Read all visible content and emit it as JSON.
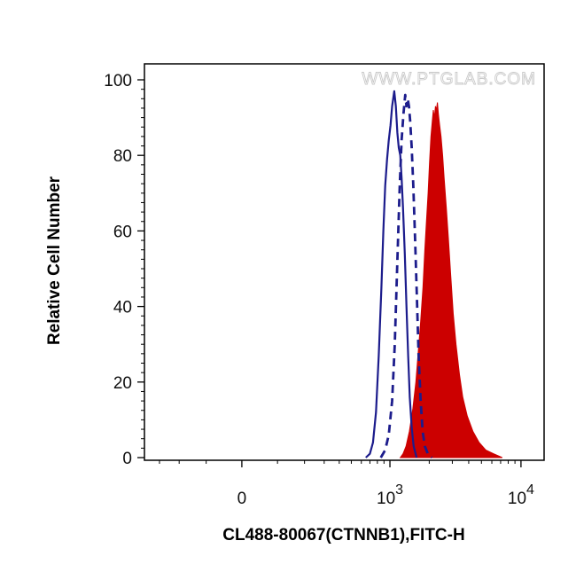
{
  "watermark": "WWW.PTGLAB.COM",
  "chart_data": {
    "type": "area",
    "title": "",
    "xlabel": "CL488-80067(CTNNB1),FITC-H",
    "ylabel": "Relative Cell Number",
    "x_scale": "biexponential",
    "xlim": [
      -400,
      15000
    ],
    "ylim": [
      0,
      100
    ],
    "x_ticks": [
      {
        "value": 0,
        "label": "0"
      },
      {
        "value": 1000,
        "label": "10",
        "exponent": "3"
      },
      {
        "value": 10000,
        "label": "10",
        "exponent": "4"
      }
    ],
    "y_ticks": [
      0,
      20,
      40,
      60,
      80,
      100
    ],
    "grid": false,
    "legend": "none",
    "series": [
      {
        "style": "solid-line",
        "color": "#1c1c8c",
        "points": [
          [
            650,
            0
          ],
          [
            700,
            1
          ],
          [
            740,
            4
          ],
          [
            780,
            12
          ],
          [
            820,
            27
          ],
          [
            860,
            45
          ],
          [
            890,
            60
          ],
          [
            920,
            72
          ],
          [
            950,
            79
          ],
          [
            980,
            84
          ],
          [
            1010,
            88
          ],
          [
            1040,
            93
          ],
          [
            1080,
            97
          ],
          [
            1110,
            93
          ],
          [
            1140,
            86
          ],
          [
            1170,
            82
          ],
          [
            1200,
            80
          ],
          [
            1230,
            74
          ],
          [
            1260,
            66
          ],
          [
            1300,
            54
          ],
          [
            1340,
            40
          ],
          [
            1380,
            27
          ],
          [
            1420,
            16
          ],
          [
            1470,
            8
          ],
          [
            1520,
            3
          ],
          [
            1600,
            0
          ]
        ]
      },
      {
        "style": "dashed-line",
        "color": "#1c1c8c",
        "points": [
          [
            850,
            0
          ],
          [
            920,
            2
          ],
          [
            980,
            6
          ],
          [
            1040,
            15
          ],
          [
            1090,
            30
          ],
          [
            1140,
            52
          ],
          [
            1190,
            72
          ],
          [
            1230,
            84
          ],
          [
            1270,
            91
          ],
          [
            1310,
            96
          ],
          [
            1340,
            93
          ],
          [
            1370,
            95
          ],
          [
            1400,
            93
          ],
          [
            1430,
            89
          ],
          [
            1470,
            82
          ],
          [
            1510,
            72
          ],
          [
            1560,
            58
          ],
          [
            1610,
            42
          ],
          [
            1660,
            27
          ],
          [
            1720,
            15
          ],
          [
            1780,
            7
          ],
          [
            1850,
            3
          ],
          [
            1950,
            1
          ],
          [
            2100,
            0
          ]
        ]
      },
      {
        "style": "filled-area",
        "color": "#cc0000",
        "points": [
          [
            1200,
            0
          ],
          [
            1260,
            1
          ],
          [
            1330,
            3
          ],
          [
            1410,
            7
          ],
          [
            1500,
            13
          ],
          [
            1580,
            20
          ],
          [
            1650,
            28
          ],
          [
            1720,
            36
          ],
          [
            1790,
            45
          ],
          [
            1850,
            55
          ],
          [
            1900,
            62
          ],
          [
            1960,
            70
          ],
          [
            2010,
            78
          ],
          [
            2060,
            85
          ],
          [
            2110,
            89
          ],
          [
            2150,
            92
          ],
          [
            2190,
            90
          ],
          [
            2230,
            93
          ],
          [
            2270,
            92
          ],
          [
            2310,
            94
          ],
          [
            2350,
            91
          ],
          [
            2400,
            88
          ],
          [
            2460,
            85
          ],
          [
            2530,
            80
          ],
          [
            2600,
            74
          ],
          [
            2700,
            66
          ],
          [
            2800,
            58
          ],
          [
            2920,
            48
          ],
          [
            3050,
            38
          ],
          [
            3200,
            30
          ],
          [
            3400,
            22
          ],
          [
            3600,
            16
          ],
          [
            3900,
            11
          ],
          [
            4300,
            7
          ],
          [
            4800,
            4
          ],
          [
            5400,
            2
          ],
          [
            6200,
            1
          ],
          [
            7200,
            0
          ]
        ]
      }
    ]
  }
}
